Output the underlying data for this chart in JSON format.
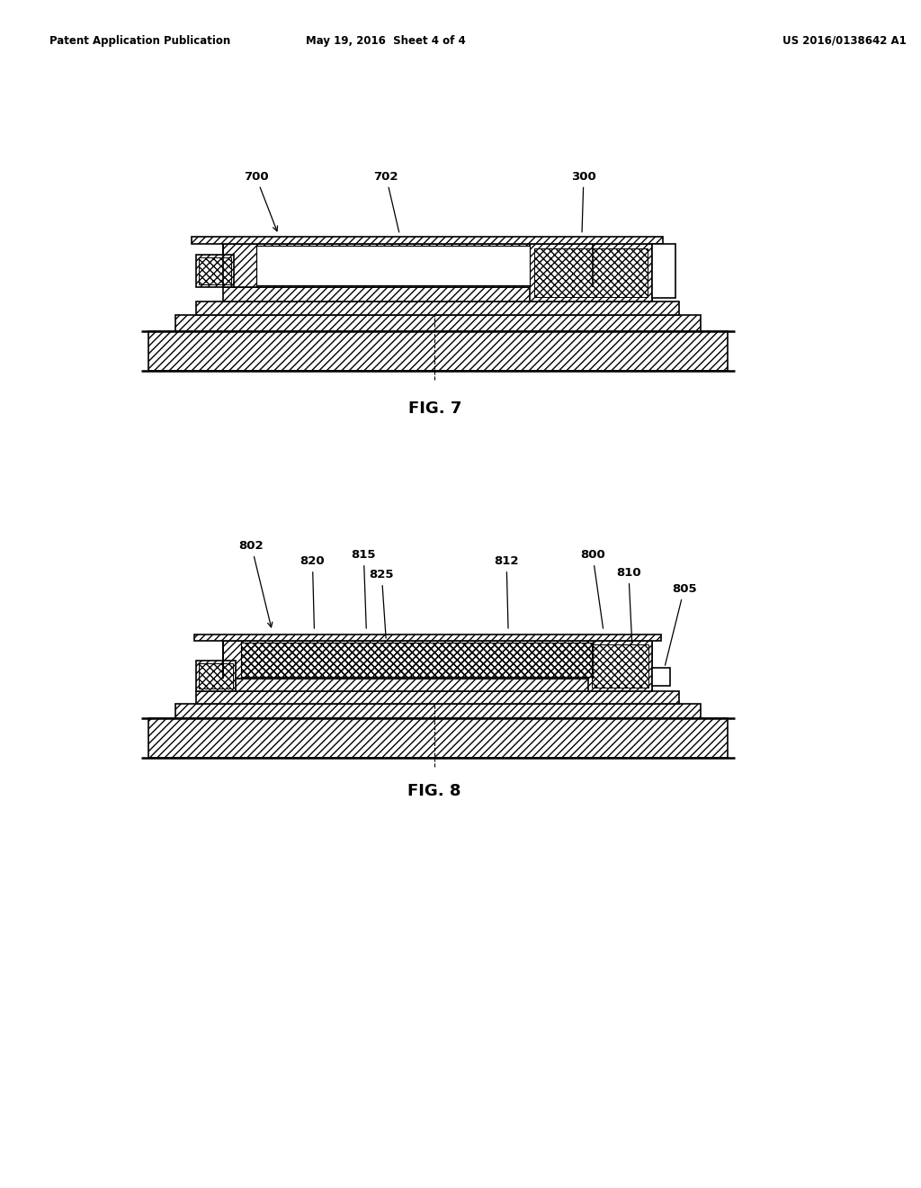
{
  "bg_color": "#ffffff",
  "header_left": "Patent Application Publication",
  "header_center": "May 19, 2016  Sheet 4 of 4",
  "header_right": "US 2016/0138642 A1",
  "fig7_label": "FIG. 7",
  "fig8_label": "FIG. 8"
}
